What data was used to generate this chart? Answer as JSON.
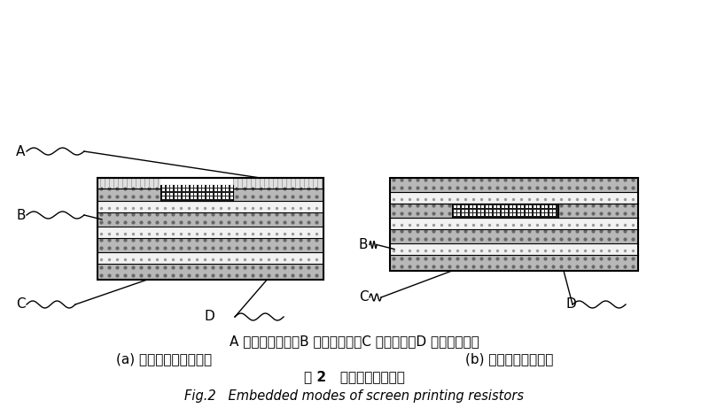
{
  "bg_color": "#ffffff",
  "fig_width": 8.0,
  "fig_height": 4.61,
  "dpi": 100,
  "caption_line1": "A 为阻焉油墨层；B 为网印电阵；C 为介质层；D 为铜面图形层",
  "caption_a": "(a) 外层电路板内埋电阵",
  "caption_b": "(b) 内层板芯内埋电阵",
  "caption_fig": "图 2   网印电阵内埋方式",
  "caption_eng": "Fig.2   Embedded modes of screen printing resistors"
}
